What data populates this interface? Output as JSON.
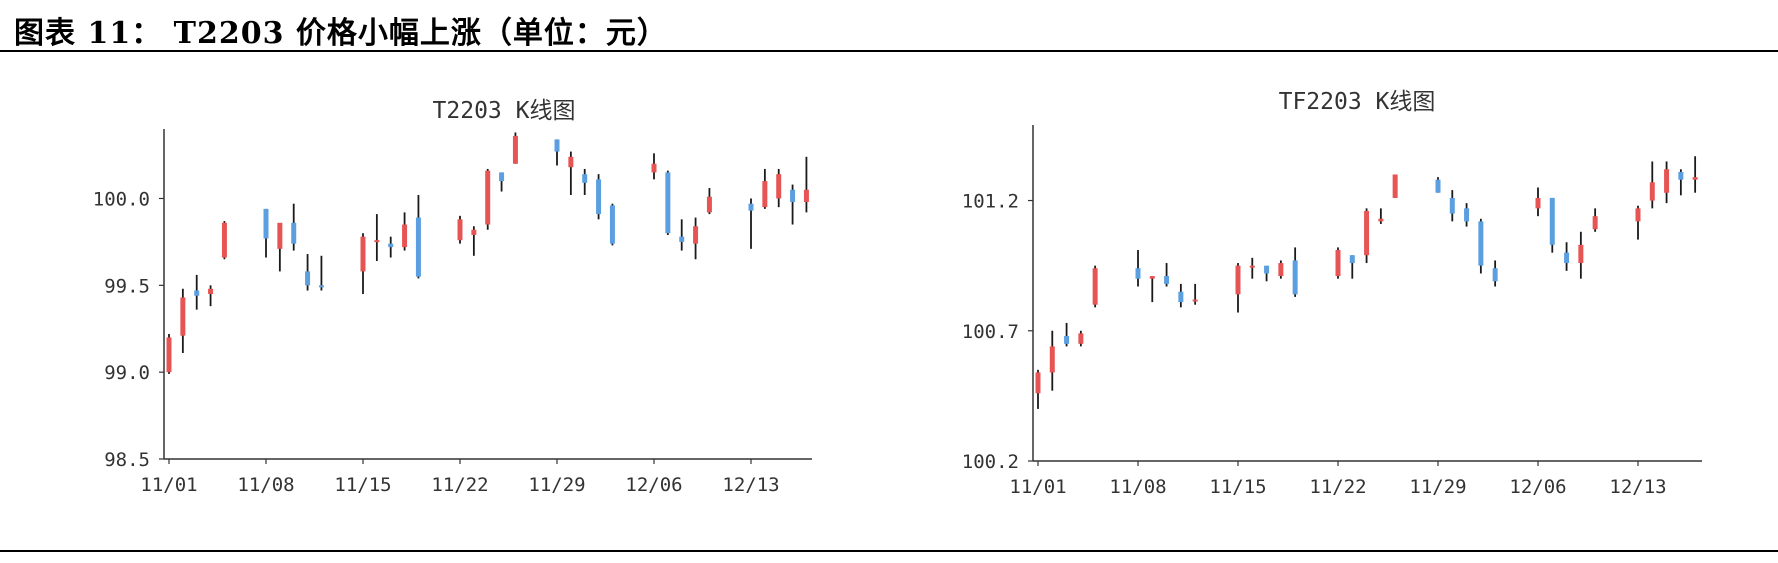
{
  "figure": {
    "title": "图表 11： T2203 价格小幅上涨（单位：元）"
  },
  "colors": {
    "up": "#e65454",
    "down": "#5b9fe0",
    "wick": "#1a1a1a",
    "axis": "#333333"
  },
  "chart_data": [
    {
      "type": "candlestick",
      "title": "T2203 K线图",
      "ylim": [
        98.5,
        100.4
      ],
      "yticks": [
        {
          "v": 98.5,
          "label": "98.5"
        },
        {
          "v": 99.0,
          "label": "99.0"
        },
        {
          "v": 99.5,
          "label": "99.5"
        },
        {
          "v": 100.0,
          "label": "100.0"
        }
      ],
      "xticks": [
        "11/01",
        "11/08",
        "11/15",
        "11/22",
        "11/29",
        "12/06",
        "12/13"
      ],
      "grid": false,
      "candles": [
        {
          "date": "11/01",
          "o": 99.0,
          "h": 99.22,
          "l": 98.99,
          "c": 99.2
        },
        {
          "date": "11/02",
          "o": 99.21,
          "h": 99.48,
          "l": 99.11,
          "c": 99.43
        },
        {
          "date": "11/03",
          "o": 99.47,
          "h": 99.56,
          "l": 99.36,
          "c": 99.44
        },
        {
          "date": "11/04",
          "o": 99.45,
          "h": 99.5,
          "l": 99.38,
          "c": 99.48
        },
        {
          "date": "11/05",
          "o": 99.66,
          "h": 99.87,
          "l": 99.65,
          "c": 99.86
        },
        {
          "date": "11/08",
          "o": 99.94,
          "h": 99.94,
          "l": 99.66,
          "c": 99.77
        },
        {
          "date": "11/09",
          "o": 99.71,
          "h": 99.85,
          "l": 99.58,
          "c": 99.86
        },
        {
          "date": "11/10",
          "o": 99.86,
          "h": 99.97,
          "l": 99.7,
          "c": 99.74
        },
        {
          "date": "11/11",
          "o": 99.58,
          "h": 99.68,
          "l": 99.47,
          "c": 99.5
        },
        {
          "date": "11/12",
          "o": 99.5,
          "h": 99.67,
          "l": 99.47,
          "c": 99.49
        },
        {
          "date": "11/15",
          "o": 99.58,
          "h": 99.8,
          "l": 99.45,
          "c": 99.78
        },
        {
          "date": "11/16",
          "o": 99.75,
          "h": 99.91,
          "l": 99.64,
          "c": 99.76
        },
        {
          "date": "11/17",
          "o": 99.74,
          "h": 99.78,
          "l": 99.66,
          "c": 99.72
        },
        {
          "date": "11/18",
          "o": 99.72,
          "h": 99.92,
          "l": 99.7,
          "c": 99.85
        },
        {
          "date": "11/19",
          "o": 99.89,
          "h": 100.02,
          "l": 99.54,
          "c": 99.55
        },
        {
          "date": "11/22",
          "o": 99.76,
          "h": 99.9,
          "l": 99.74,
          "c": 99.88
        },
        {
          "date": "11/23",
          "o": 99.79,
          "h": 99.84,
          "l": 99.67,
          "c": 99.82
        },
        {
          "date": "11/24",
          "o": 99.85,
          "h": 100.17,
          "l": 99.82,
          "c": 100.16
        },
        {
          "date": "11/25",
          "o": 100.15,
          "h": 100.15,
          "l": 100.04,
          "c": 100.1
        },
        {
          "date": "11/26",
          "o": 100.2,
          "h": 100.38,
          "l": 100.2,
          "c": 100.36
        },
        {
          "date": "11/29",
          "o": 100.34,
          "h": 100.34,
          "l": 100.19,
          "c": 100.27
        },
        {
          "date": "11/30",
          "o": 100.18,
          "h": 100.27,
          "l": 100.02,
          "c": 100.24
        },
        {
          "date": "12/01",
          "o": 100.14,
          "h": 100.17,
          "l": 100.02,
          "c": 100.09
        },
        {
          "date": "12/02",
          "o": 100.11,
          "h": 100.14,
          "l": 99.88,
          "c": 99.91
        },
        {
          "date": "12/03",
          "o": 99.96,
          "h": 99.97,
          "l": 99.73,
          "c": 99.74
        },
        {
          "date": "12/06",
          "o": 100.15,
          "h": 100.26,
          "l": 100.11,
          "c": 100.2
        },
        {
          "date": "12/07",
          "o": 100.15,
          "h": 100.16,
          "l": 99.79,
          "c": 99.8
        },
        {
          "date": "12/08",
          "o": 99.78,
          "h": 99.88,
          "l": 99.7,
          "c": 99.75
        },
        {
          "date": "12/09",
          "o": 99.74,
          "h": 99.89,
          "l": 99.65,
          "c": 99.84
        },
        {
          "date": "12/10",
          "o": 99.92,
          "h": 100.06,
          "l": 99.91,
          "c": 100.01
        },
        {
          "date": "12/13",
          "o": 99.97,
          "h": 100.0,
          "l": 99.71,
          "c": 99.93
        },
        {
          "date": "12/14",
          "o": 99.95,
          "h": 100.17,
          "l": 99.94,
          "c": 100.1
        },
        {
          "date": "12/15",
          "o": 100.0,
          "h": 100.17,
          "l": 99.95,
          "c": 100.14
        },
        {
          "date": "12/16",
          "o": 100.05,
          "h": 100.08,
          "l": 99.85,
          "c": 99.98
        },
        {
          "date": "12/17",
          "o": 99.98,
          "h": 100.24,
          "l": 99.92,
          "c": 100.05
        }
      ]
    },
    {
      "type": "candlestick",
      "title": "TF2203  K线图",
      "ylim": [
        100.2,
        101.49
      ],
      "yticks": [
        {
          "v": 100.2,
          "label": "100.2"
        },
        {
          "v": 100.7,
          "label": "100.7"
        },
        {
          "v": 101.2,
          "label": "101.2"
        }
      ],
      "xticks": [
        "11/01",
        "11/08",
        "11/15",
        "11/22",
        "11/29",
        "12/06",
        "12/13"
      ],
      "grid": false,
      "candles": [
        {
          "date": "11/01",
          "o": 100.46,
          "h": 100.55,
          "l": 100.4,
          "c": 100.54
        },
        {
          "date": "11/02",
          "o": 100.54,
          "h": 100.7,
          "l": 100.47,
          "c": 100.64
        },
        {
          "date": "11/03",
          "o": 100.68,
          "h": 100.73,
          "l": 100.64,
          "c": 100.65
        },
        {
          "date": "11/04",
          "o": 100.65,
          "h": 100.7,
          "l": 100.64,
          "c": 100.69
        },
        {
          "date": "11/05",
          "o": 100.8,
          "h": 100.95,
          "l": 100.79,
          "c": 100.94
        },
        {
          "date": "11/08",
          "o": 100.94,
          "h": 101.01,
          "l": 100.87,
          "c": 100.9
        },
        {
          "date": "11/09",
          "o": 100.9,
          "h": 100.91,
          "l": 100.81,
          "c": 100.91
        },
        {
          "date": "11/10",
          "o": 100.91,
          "h": 100.96,
          "l": 100.87,
          "c": 100.88
        },
        {
          "date": "11/11",
          "o": 100.85,
          "h": 100.88,
          "l": 100.79,
          "c": 100.81
        },
        {
          "date": "11/12",
          "o": 100.82,
          "h": 100.88,
          "l": 100.8,
          "c": 100.82
        },
        {
          "date": "11/15",
          "o": 100.84,
          "h": 100.96,
          "l": 100.77,
          "c": 100.95
        },
        {
          "date": "11/16",
          "o": 100.95,
          "h": 100.98,
          "l": 100.9,
          "c": 100.95
        },
        {
          "date": "11/17",
          "o": 100.95,
          "h": 100.94,
          "l": 100.89,
          "c": 100.92
        },
        {
          "date": "11/18",
          "o": 100.91,
          "h": 100.97,
          "l": 100.9,
          "c": 100.96
        },
        {
          "date": "11/19",
          "o": 100.97,
          "h": 101.02,
          "l": 100.83,
          "c": 100.84
        },
        {
          "date": "11/22",
          "o": 100.91,
          "h": 101.02,
          "l": 100.9,
          "c": 101.01
        },
        {
          "date": "11/23",
          "o": 100.99,
          "h": 100.99,
          "l": 100.9,
          "c": 100.96
        },
        {
          "date": "11/24",
          "o": 100.99,
          "h": 101.17,
          "l": 100.96,
          "c": 101.16
        },
        {
          "date": "11/25",
          "o": 101.12,
          "h": 101.17,
          "l": 101.11,
          "c": 101.13
        },
        {
          "date": "11/26",
          "o": 101.21,
          "h": 101.3,
          "l": 101.21,
          "c": 101.3
        },
        {
          "date": "11/29",
          "o": 101.28,
          "h": 101.29,
          "l": 101.23,
          "c": 101.23
        },
        {
          "date": "11/30",
          "o": 101.21,
          "h": 101.24,
          "l": 101.12,
          "c": 101.15
        },
        {
          "date": "12/01",
          "o": 101.17,
          "h": 101.19,
          "l": 101.1,
          "c": 101.12
        },
        {
          "date": "12/02",
          "o": 101.12,
          "h": 101.13,
          "l": 100.92,
          "c": 100.95
        },
        {
          "date": "12/03",
          "o": 100.94,
          "h": 100.97,
          "l": 100.87,
          "c": 100.89
        },
        {
          "date": "12/06",
          "o": 101.17,
          "h": 101.25,
          "l": 101.14,
          "c": 101.21
        },
        {
          "date": "12/07",
          "o": 101.21,
          "h": 101.21,
          "l": 101.0,
          "c": 101.03
        },
        {
          "date": "12/08",
          "o": 101.0,
          "h": 101.04,
          "l": 100.93,
          "c": 100.96
        },
        {
          "date": "12/09",
          "o": 100.96,
          "h": 101.08,
          "l": 100.9,
          "c": 101.03
        },
        {
          "date": "12/10",
          "o": 101.09,
          "h": 101.17,
          "l": 101.08,
          "c": 101.14
        },
        {
          "date": "12/13",
          "o": 101.12,
          "h": 101.18,
          "l": 101.05,
          "c": 101.17
        },
        {
          "date": "12/14",
          "o": 101.2,
          "h": 101.35,
          "l": 101.17,
          "c": 101.27
        },
        {
          "date": "12/15",
          "o": 101.23,
          "h": 101.35,
          "l": 101.19,
          "c": 101.32
        },
        {
          "date": "12/16",
          "o": 101.31,
          "h": 101.32,
          "l": 101.22,
          "c": 101.28
        },
        {
          "date": "12/17",
          "o": 101.28,
          "h": 101.37,
          "l": 101.23,
          "c": 101.29
        }
      ]
    }
  ]
}
